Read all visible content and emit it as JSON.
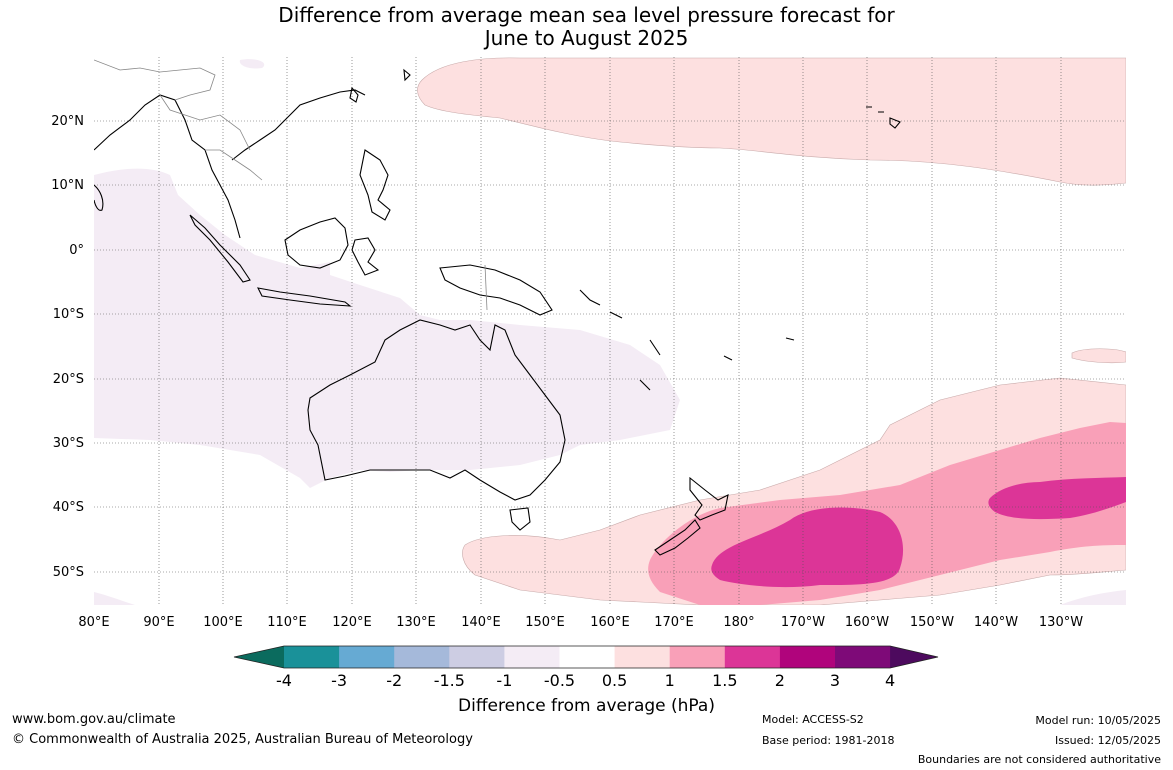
{
  "title": {
    "line1": "Difference from average mean sea level pressure forecast for",
    "line2": "June to August 2025"
  },
  "map": {
    "lat_labels": [
      "20°N",
      "10°N",
      "0°",
      "10°S",
      "20°S",
      "30°S",
      "40°S",
      "50°S"
    ],
    "lon_labels": [
      "80°E",
      "90°E",
      "100°E",
      "110°E",
      "120°E",
      "130°E",
      "140°E",
      "150°E",
      "160°E",
      "170°E",
      "180°",
      "170°W",
      "160°W",
      "150°W",
      "140°W",
      "130°W"
    ],
    "colors": {
      "neg_0_5": "#f4ecf5",
      "pos_0_5": "#fde0e0",
      "pos_1": "#f9a0b8",
      "pos_1_5": "#dc3597",
      "coast": "#000000",
      "border": "#808080"
    }
  },
  "colorbar": {
    "title": "Difference from average (hPa)",
    "tick_labels": [
      "-4",
      "-3",
      "-2",
      "-1.5",
      "-1",
      "-0.5",
      "0.5",
      "1",
      "1.5",
      "2",
      "3",
      "4"
    ],
    "colors": [
      "#0b6b5e",
      "#1a9199",
      "#66aad3",
      "#a5b9da",
      "#cdcde3",
      "#f4ecf5",
      "#ffffff",
      "#fde0e0",
      "#f9a0b8",
      "#dc3597",
      "#b0047c",
      "#7e0a78",
      "#4d0a5e"
    ]
  },
  "footer": {
    "website": "www.bom.gov.au/climate",
    "copyright": "© Commonwealth of Australia 2025, Australian Bureau of Meteorology",
    "model": "Model: ACCESS-S2",
    "base_period": "Base period: 1981-2018",
    "model_run": "Model run: 10/05/2025",
    "issued": "Issued: 12/05/2025",
    "disclaimer": "Boundaries are not considered authoritative"
  }
}
